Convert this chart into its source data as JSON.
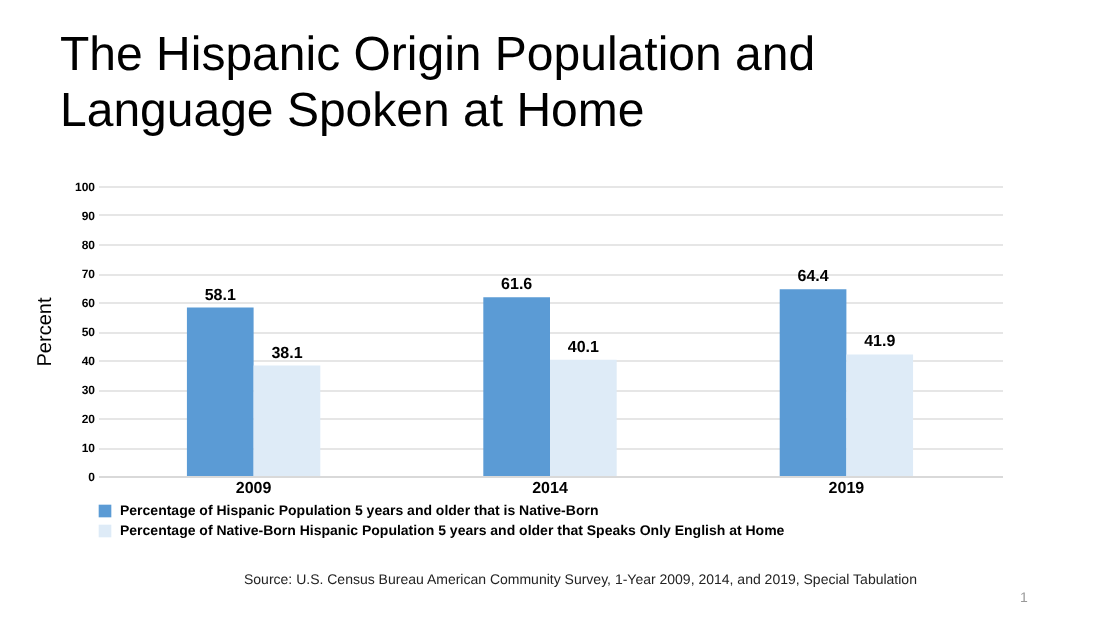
{
  "chart_data": {
    "type": "bar",
    "title": "The Hispanic Origin Population and Language Spoken at Home",
    "ylabel": "Percent",
    "categories": [
      "2009",
      "2014",
      "2019"
    ],
    "series": [
      {
        "name": "Percentage of Hispanic Population 5 years and older that is Native-Born",
        "color": "#5b9bd5",
        "values": [
          58.1,
          61.6,
          64.4
        ]
      },
      {
        "name": "Percentage of Native-Born Hispanic Population 5 years and older that Speaks Only English at Home",
        "color": "#deebf7",
        "values": [
          38.1,
          40.1,
          41.9
        ]
      }
    ],
    "ylim": [
      0,
      100
    ],
    "yticks": [
      0,
      10,
      20,
      30,
      40,
      50,
      60,
      70,
      80,
      90,
      100
    ],
    "grid": "y",
    "legend": "bottom",
    "data_labels": true,
    "annotations": [
      "Source: U.S. Census Bureau American Community Survey, 1-Year 2009,  2014, and 2019, Special Tabulation",
      "1"
    ]
  }
}
